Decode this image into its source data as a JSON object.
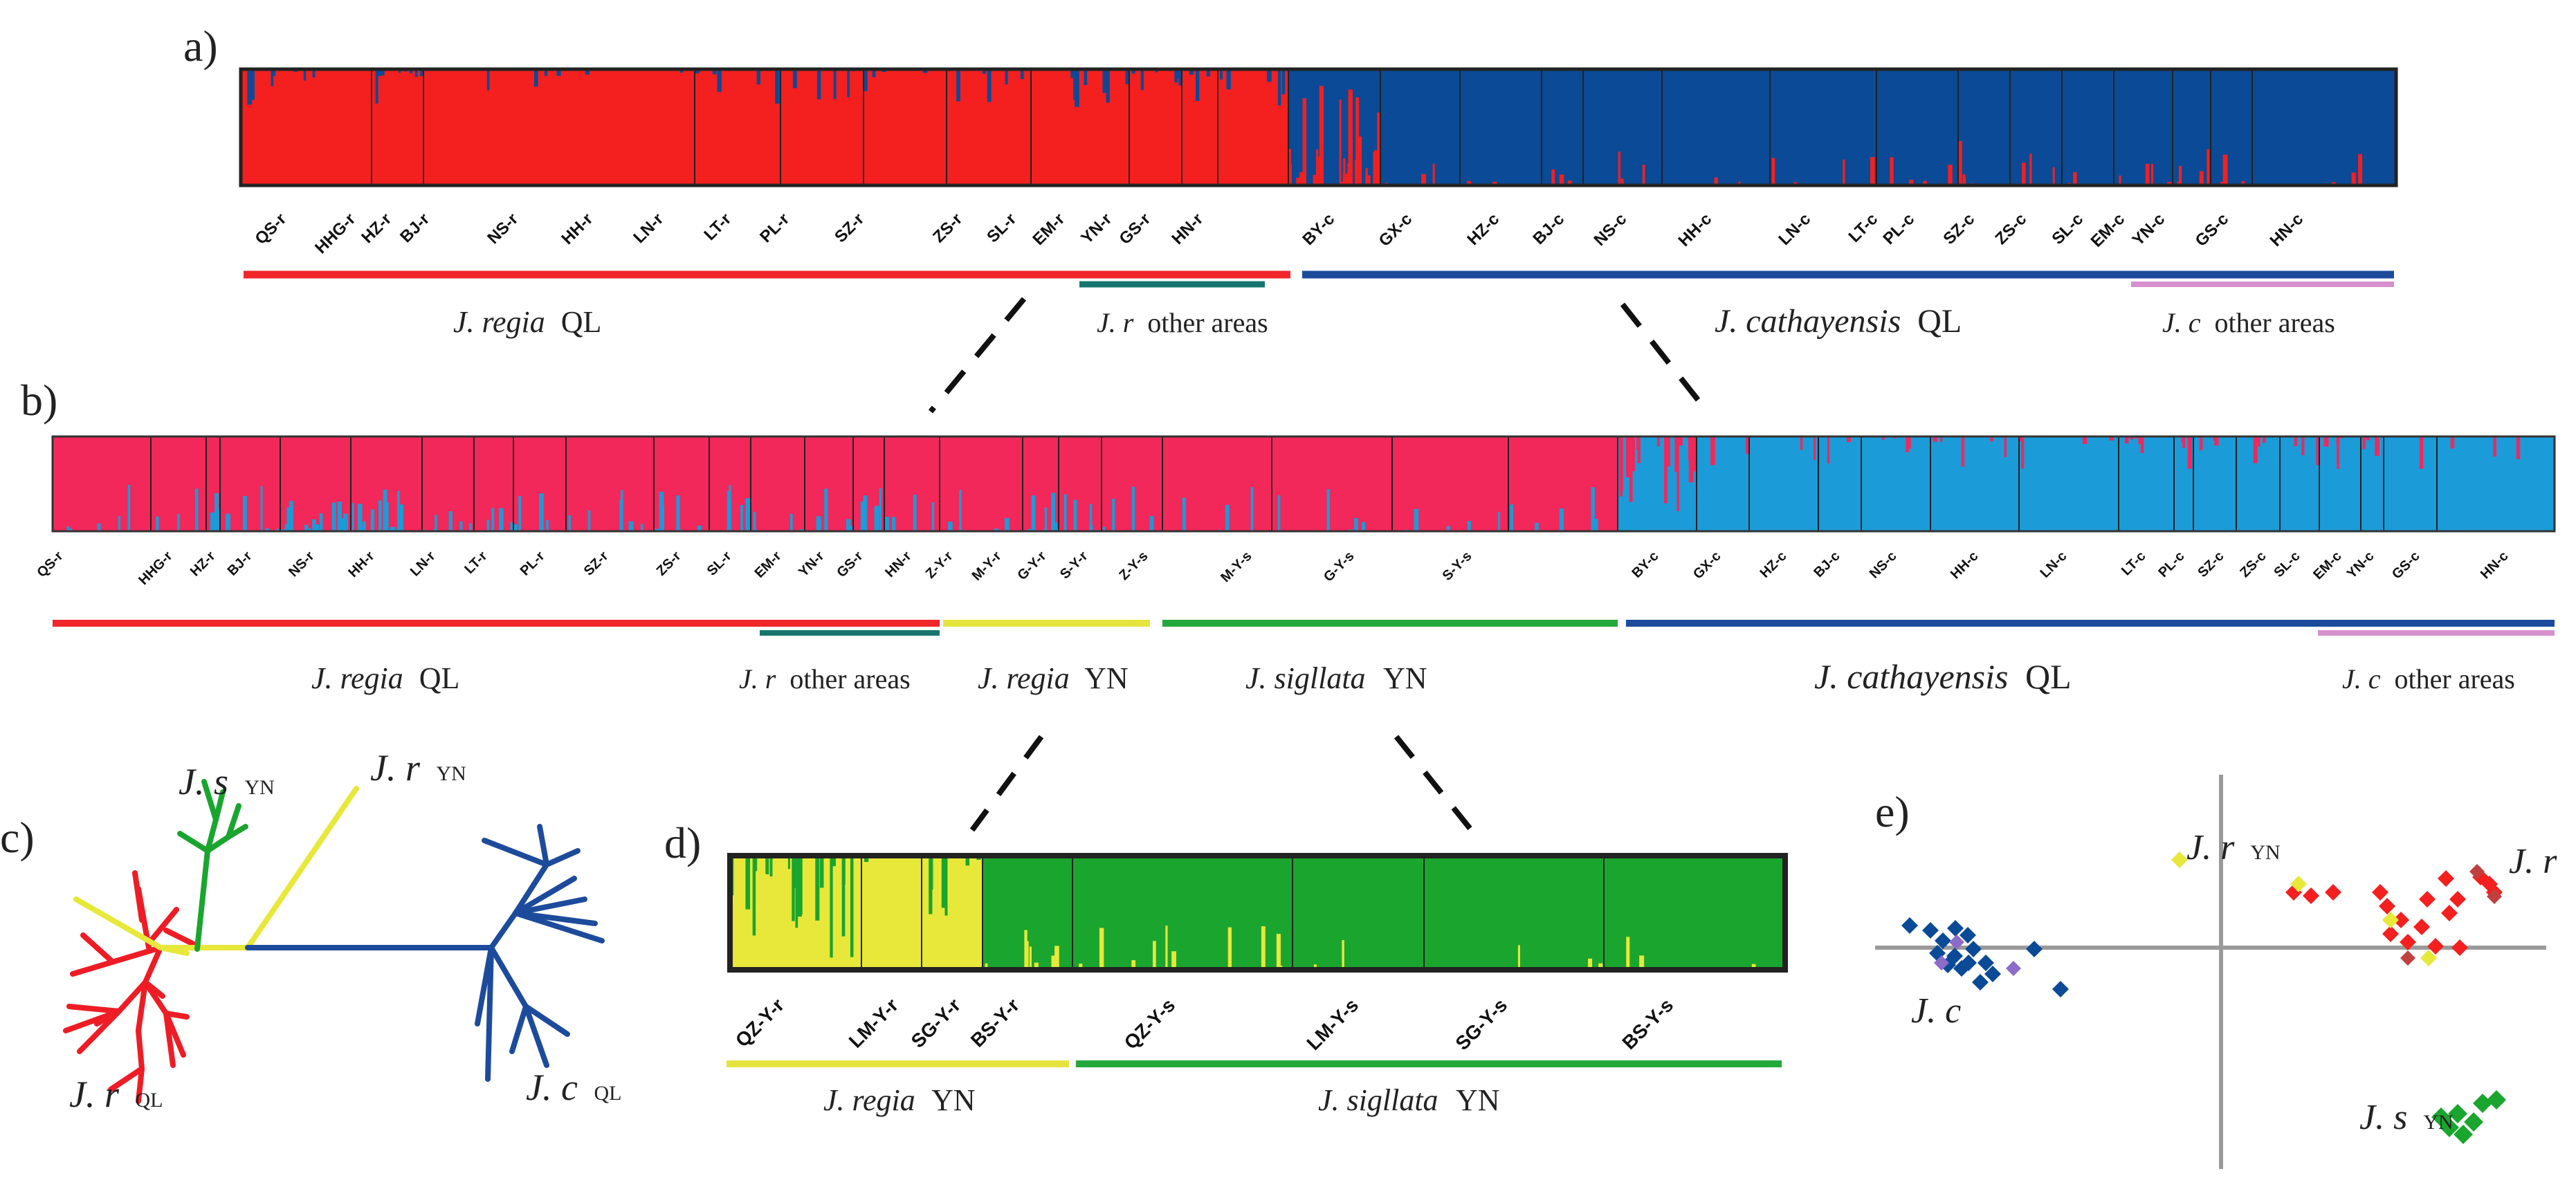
{
  "colors": {
    "regia_red": "#f41f1f",
    "cathay_blue": "#0a4a96",
    "regia_pink": "#f2275a",
    "cathay_light": "#1b9bd8",
    "regia_yellow": "#e8e83a",
    "sig_green": "#1aa52e",
    "line_red": "#f0262a",
    "line_teal": "#16766d",
    "line_blue": "#1d4b9c",
    "line_pink": "#d690cc",
    "line_yellow": "#e5e43f",
    "line_green": "#25a83b"
  },
  "panels": {
    "a": "a)",
    "b": "b)",
    "c": "c)",
    "d": "d)",
    "e": "e)"
  },
  "panel_a": {
    "pops": [
      "QS-r",
      "HHG-r",
      "HZ-r",
      "BJ-r",
      "NS-r",
      "HH-r",
      "LN-r",
      "LT-r",
      "PL-r",
      "SZ-r",
      "ZS-r",
      "SL-r",
      "EM-r",
      "YN-r",
      "GS-r",
      "HN-r",
      "BY-c",
      "GX-c",
      "HZ-c",
      "BJ-c",
      "NS-c",
      "HH-c",
      "LN-c",
      "LT-c",
      "PL-c",
      "SZ-c",
      "ZS-c",
      "SL-c",
      "EM-c",
      "YN-c",
      "GS-c",
      "HN-c"
    ],
    "groups": {
      "regia_ql": {
        "italic": "J. regia",
        "plain": "QL"
      },
      "r_other": {
        "italic": "J. r",
        "plain": "other areas"
      },
      "cathay_ql": {
        "italic": "J. cathayensis",
        "plain": "QL"
      },
      "c_other": {
        "italic": "J. c",
        "plain": "other areas"
      }
    }
  },
  "panel_b": {
    "pops": [
      "QS-r",
      "HHG-r",
      "HZ-r",
      "BJ-r",
      "NS-r",
      "HH-r",
      "LN-r",
      "LT-r",
      "PL-r",
      "SZ-r",
      "ZS-r",
      "SL-r",
      "EM-r",
      "YN-r",
      "GS-r",
      "HN-r",
      "Z-Y-r",
      "M-Y-r",
      "G-Y-r",
      "S-Y-r",
      "Z-Y-s",
      "M-Y-s",
      "G-Y-s",
      "S-Y-s",
      "BY-c",
      "GX-c",
      "HZ-c",
      "BJ-c",
      "NS-c",
      "HH-c",
      "LN-c",
      "LT-c",
      "PL-c",
      "SZ-c",
      "ZS-c",
      "SL-c",
      "EM-c",
      "YN-c",
      "GS-c",
      "HN-c"
    ],
    "groups": {
      "regia_ql": {
        "italic": "J. regia",
        "plain": "QL"
      },
      "r_other": {
        "italic": "J. r",
        "plain": "other areas"
      },
      "regia_yn": {
        "italic": "J. regia",
        "plain": "YN"
      },
      "sig_yn": {
        "italic": "J. sigllata",
        "plain": "YN"
      },
      "cathay_ql": {
        "italic": "J. cathayensis",
        "plain": "QL"
      },
      "c_other": {
        "italic": "J. c",
        "plain": "other areas"
      }
    }
  },
  "panel_c": {
    "labels": {
      "js": {
        "italic": "J. s",
        "plain": "YN"
      },
      "jr_yn": {
        "italic": "J. r",
        "plain": "YN"
      },
      "jr_ql": {
        "italic": "J. r",
        "plain": "QL"
      },
      "jc_ql": {
        "italic": "J. c",
        "plain": "QL"
      }
    }
  },
  "panel_d": {
    "pops": [
      "QZ-Y-r",
      "LM-Y-r",
      "SG-Y-r",
      "BS-Y-r",
      "QZ-Y-s",
      "LM-Y-s",
      "SG-Y-s",
      "BS-Y-s"
    ],
    "groups": {
      "regia_yn": {
        "italic": "J. regia",
        "plain": "YN"
      },
      "sig_yn": {
        "italic": "J. sigllata",
        "plain": "YN"
      }
    }
  },
  "panel_e": {
    "labels": {
      "jr_yn": {
        "italic": "J. r",
        "plain": "YN"
      },
      "jr": {
        "italic": "J. r",
        "plain": ""
      },
      "jc": {
        "italic": "J. c",
        "plain": ""
      },
      "js": {
        "italic": "J. s",
        "plain": "YN"
      }
    }
  }
}
